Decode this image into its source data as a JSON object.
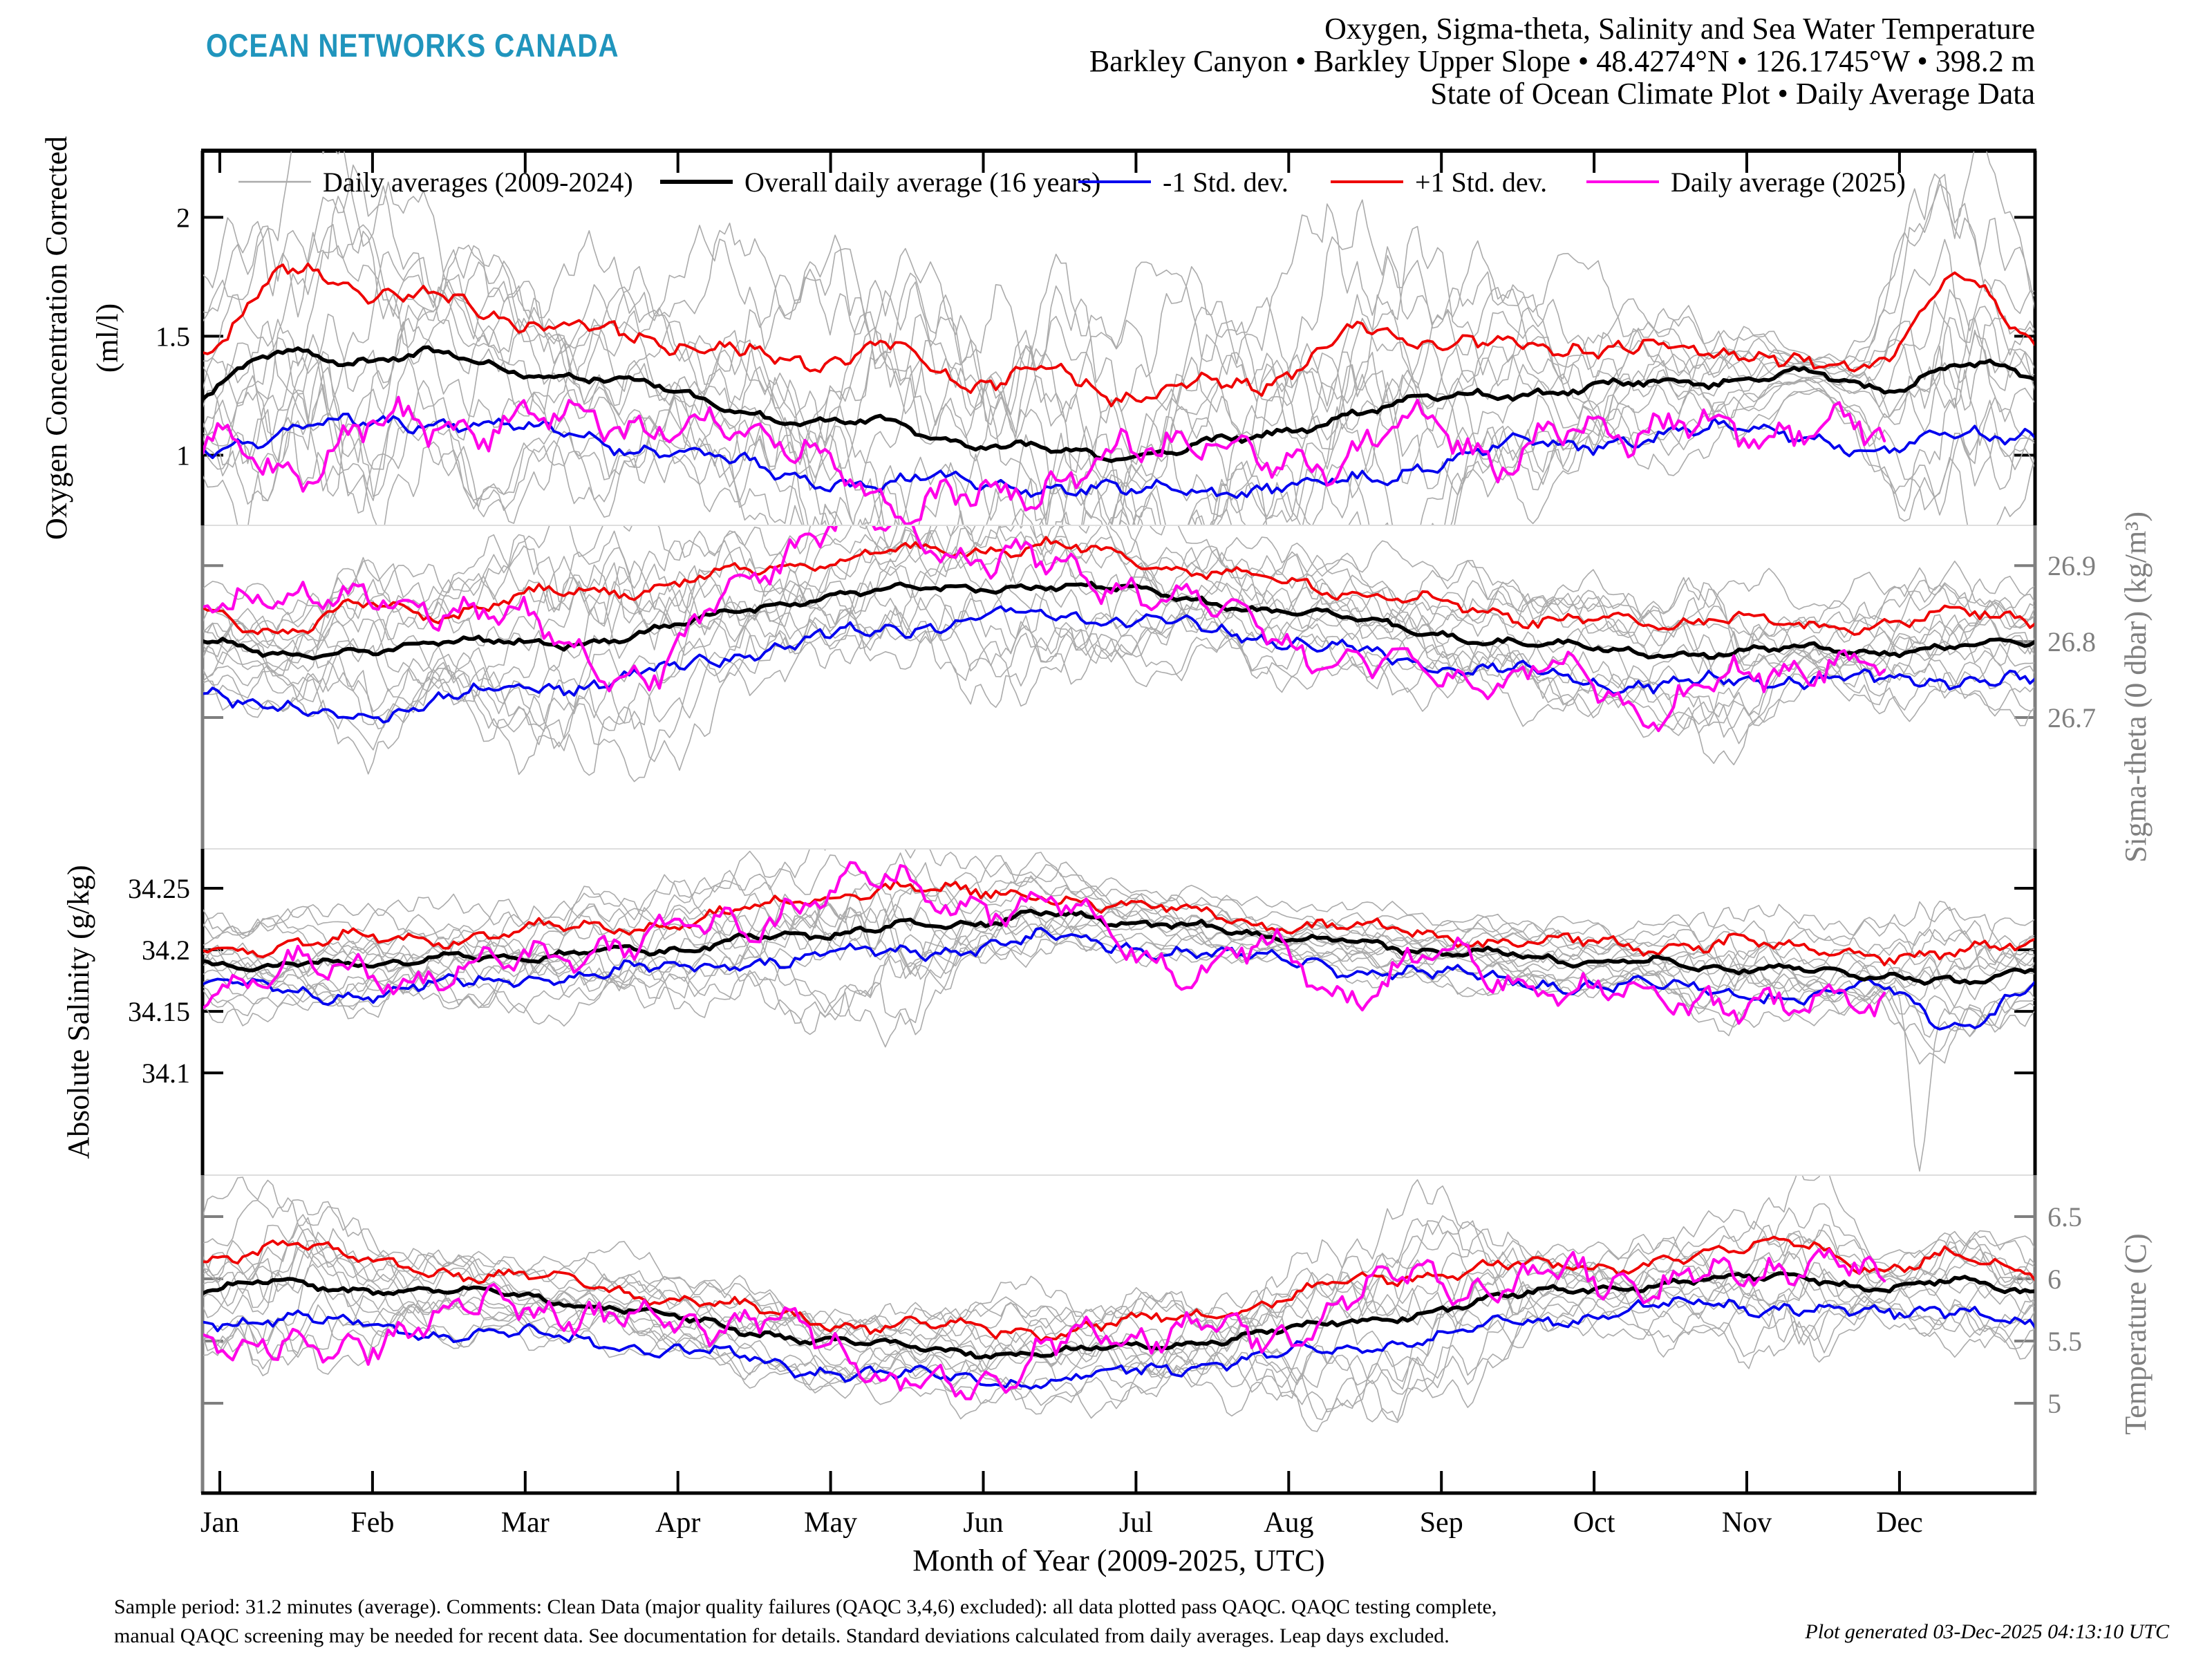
{
  "header": {
    "logo": "OCEAN NETWORKS CANADA",
    "logo_color": "#2095BD",
    "title_line1": "Oxygen, Sigma-theta, Salinity and Sea Water Temperature",
    "title_line2": "Barkley Canyon • Barkley Upper Slope • 48.4274°N • 126.1745°W • 398.2 m",
    "title_line3": "State of Ocean Climate Plot • Daily Average Data"
  },
  "footer": {
    "line1": "Sample period: 31.2 minutes (average). Comments: Clean Data (major quality failures (QAQC 3,4,6) excluded): all data plotted pass QAQC. QAQC testing complete,",
    "line2": "manual QAQC screening may be needed for recent data. See documentation for details. Standard deviations calculated from daily averages. Leap days excluded.",
    "generated": "Plot generated 03-Dec-2025 04:13:10 UTC"
  },
  "chart_data": {
    "type": "line",
    "title": "State of Ocean Climate Plot - Daily Average Data",
    "x_axis": {
      "label": "Month of Year (2009-2025, UTC)",
      "months": [
        "Jan",
        "Feb",
        "Mar",
        "Apr",
        "May",
        "Jun",
        "Jul",
        "Aug",
        "Sep",
        "Oct",
        "Nov",
        "Dec"
      ]
    },
    "legend": [
      {
        "key": "gray",
        "label": "Daily averages (2009-2024)",
        "color": "#ABABAB"
      },
      {
        "key": "overall",
        "label": "Overall daily average (16 years)",
        "color": "#000000"
      },
      {
        "key": "minus",
        "label": "-1 Std. dev.",
        "color": "#0000EE"
      },
      {
        "key": "plus",
        "label": "+1 Std. dev.",
        "color": "#EE0000"
      },
      {
        "key": "y2025",
        "label": "Daily average (2025)",
        "color": "#FF00E8"
      }
    ],
    "colors": {
      "gray_lines": "#ABABAB",
      "gray_axis": "#7F7F7F",
      "black": "#000000",
      "minus_std": "#0000EE",
      "plus_std": "#EE0000",
      "avg_2025": "#FF00E8",
      "separator": "#DEDEDE"
    },
    "gray_years_count": 16,
    "control_points_per_year": 25,
    "panels": [
      {
        "id": "oxygen",
        "ylabel_line1": "Oxygen Concentration Corrected",
        "ylabel_line2": "(ml/l)",
        "axis_side": "left",
        "axis_color": "#000000",
        "ylim": [
          0.705,
          2.28
        ],
        "yticks": [
          {
            "value": 2,
            "label": "2"
          },
          {
            "value": 1.5,
            "label": "1.5"
          },
          {
            "value": 1,
            "label": "1"
          }
        ],
        "series": {
          "overall": [
            1.25,
            1.43,
            1.4,
            1.42,
            1.36,
            1.33,
            1.28,
            1.2,
            1.13,
            1.14,
            1.05,
            1.02,
            1.0,
            1.04,
            1.08,
            1.18,
            1.23,
            1.26,
            1.28,
            1.3,
            1.32,
            1.34,
            1.27,
            1.39,
            1.32
          ],
          "plus": [
            1.44,
            1.75,
            1.7,
            1.66,
            1.58,
            1.53,
            1.48,
            1.43,
            1.4,
            1.45,
            1.31,
            1.35,
            1.26,
            1.29,
            1.32,
            1.5,
            1.49,
            1.46,
            1.46,
            1.44,
            1.45,
            1.37,
            1.42,
            1.73,
            1.49
          ],
          "minus": [
            1.04,
            1.09,
            1.13,
            1.15,
            1.11,
            1.08,
            1.02,
            0.96,
            0.91,
            0.87,
            0.9,
            0.87,
            0.84,
            0.87,
            0.85,
            0.89,
            0.96,
            1.03,
            1.05,
            1.08,
            1.1,
            1.1,
            1.0,
            1.1,
            1.1
          ],
          "y2025": [
            1.03,
            0.94,
            1.07,
            1.15,
            1.1,
            1.21,
            1.06,
            1.17,
            0.96,
            0.84,
            0.79,
            0.9,
            0.97,
            1.11,
            0.93,
            1.04,
            1.12,
            1.0,
            1.09,
            1.13,
            1.08,
            1.14,
            1.05,
            null,
            null
          ]
        }
      },
      {
        "id": "sigma_theta",
        "ylabel_line1": "Sigma-theta (0 dbar) (kg/m³)",
        "ylabel_line2": "",
        "axis_side": "right",
        "axis_color": "#7F7F7F",
        "ylim": [
          26.527,
          26.953
        ],
        "yticks": [
          {
            "value": 26.9,
            "label": "26.9"
          },
          {
            "value": 26.8,
            "label": "26.8"
          },
          {
            "value": 26.7,
            "label": "26.7"
          }
        ],
        "series": {
          "overall": [
            26.8,
            26.78,
            26.79,
            26.795,
            26.8,
            26.8,
            26.815,
            26.84,
            26.858,
            26.866,
            26.87,
            26.874,
            26.868,
            26.856,
            26.842,
            26.83,
            26.815,
            26.8,
            26.792,
            26.786,
            26.786,
            26.79,
            26.788,
            26.794,
            26.796
          ],
          "plus": [
            26.835,
            26.815,
            26.845,
            26.835,
            26.855,
            26.865,
            26.875,
            26.89,
            26.905,
            26.915,
            26.92,
            26.926,
            26.91,
            26.896,
            26.88,
            26.868,
            26.852,
            26.838,
            26.828,
            26.822,
            26.836,
            26.815,
            26.828,
            26.834,
            26.828
          ],
          "minus": [
            26.74,
            26.712,
            26.7,
            26.725,
            26.735,
            26.745,
            26.76,
            26.785,
            26.802,
            26.818,
            26.828,
            26.836,
            26.83,
            26.818,
            26.804,
            26.788,
            26.772,
            26.76,
            26.752,
            26.742,
            26.748,
            26.752,
            26.748,
            26.752,
            26.748
          ],
          "y2025": [
            26.835,
            26.87,
            26.845,
            26.855,
            26.83,
            26.785,
            26.76,
            26.875,
            26.945,
            26.95,
            26.915,
            26.898,
            26.88,
            26.845,
            26.82,
            26.758,
            26.772,
            26.742,
            26.76,
            26.708,
            26.748,
            26.775,
            26.76,
            null,
            null
          ]
        }
      },
      {
        "id": "salinity",
        "ylabel_line1": "Absolute Salinity (g/kg)",
        "ylabel_line2": "",
        "axis_side": "left",
        "axis_color": "#000000",
        "ylim": [
          34.017,
          34.282
        ],
        "yticks": [
          {
            "value": 34.25,
            "label": "34.25"
          },
          {
            "value": 34.2,
            "label": "34.2"
          },
          {
            "value": 34.15,
            "label": "34.15"
          },
          {
            "value": 34.1,
            "label": "34.1"
          }
        ],
        "series": {
          "overall": [
            34.19,
            34.186,
            34.19,
            34.192,
            34.194,
            34.198,
            34.2,
            34.207,
            34.213,
            34.218,
            34.222,
            34.228,
            34.224,
            34.218,
            34.212,
            34.206,
            34.2,
            34.196,
            34.192,
            34.189,
            34.186,
            34.183,
            34.18,
            34.172,
            34.188
          ],
          "plus": [
            34.206,
            34.202,
            34.208,
            34.21,
            34.214,
            34.218,
            34.222,
            34.23,
            34.24,
            34.252,
            34.244,
            34.246,
            34.236,
            34.23,
            34.222,
            34.218,
            34.212,
            34.208,
            34.205,
            34.202,
            34.208,
            34.198,
            34.198,
            34.198,
            34.202
          ],
          "minus": [
            34.172,
            34.168,
            34.165,
            34.17,
            34.176,
            34.18,
            34.184,
            34.19,
            34.194,
            34.198,
            34.202,
            34.208,
            34.204,
            34.198,
            34.192,
            34.186,
            34.18,
            34.176,
            34.172,
            34.17,
            34.166,
            34.162,
            34.168,
            34.14,
            34.172
          ],
          "y2025": [
            34.176,
            34.18,
            34.184,
            34.178,
            34.188,
            34.204,
            34.21,
            34.222,
            34.244,
            34.252,
            34.24,
            34.232,
            34.212,
            34.185,
            34.196,
            34.168,
            34.19,
            34.178,
            34.17,
            34.155,
            34.165,
            34.15,
            34.157,
            null,
            null
          ]
        }
      },
      {
        "id": "temperature",
        "ylabel_line1": "Temperature (C)",
        "ylabel_line2": "",
        "axis_side": "right",
        "axis_color": "#7F7F7F",
        "ylim": [
          4.278,
          6.833
        ],
        "yticks": [
          {
            "value": 6.5,
            "label": "6.5"
          },
          {
            "value": 6,
            "label": "6"
          },
          {
            "value": 5.5,
            "label": "5.5"
          },
          {
            "value": 5,
            "label": "5"
          }
        ],
        "series": {
          "overall": [
            5.9,
            5.97,
            5.92,
            5.9,
            5.88,
            5.8,
            5.7,
            5.6,
            5.52,
            5.46,
            5.42,
            5.4,
            5.44,
            5.5,
            5.57,
            5.65,
            5.74,
            5.84,
            5.92,
            5.96,
            5.99,
            6.02,
            5.92,
            5.97,
            5.9
          ],
          "plus": [
            6.12,
            6.3,
            6.15,
            6.08,
            6.02,
            5.95,
            5.86,
            5.76,
            5.68,
            5.62,
            5.6,
            5.58,
            5.63,
            5.72,
            5.82,
            5.95,
            6.05,
            6.1,
            6.08,
            6.15,
            6.2,
            6.32,
            6.05,
            6.18,
            6.08
          ],
          "minus": [
            5.65,
            5.7,
            5.62,
            5.58,
            5.55,
            5.5,
            5.44,
            5.36,
            5.28,
            5.22,
            5.2,
            5.17,
            5.24,
            5.32,
            5.38,
            5.44,
            5.52,
            5.62,
            5.7,
            5.76,
            5.79,
            5.77,
            5.7,
            5.78,
            5.6
          ],
          "y2025": [
            5.58,
            5.38,
            5.52,
            5.6,
            5.88,
            5.6,
            5.75,
            5.55,
            5.65,
            5.12,
            5.18,
            5.4,
            5.55,
            5.62,
            5.5,
            5.88,
            6.02,
            5.92,
            6.05,
            5.96,
            6.0,
            6.18,
            5.92,
            null,
            null
          ]
        }
      }
    ]
  }
}
